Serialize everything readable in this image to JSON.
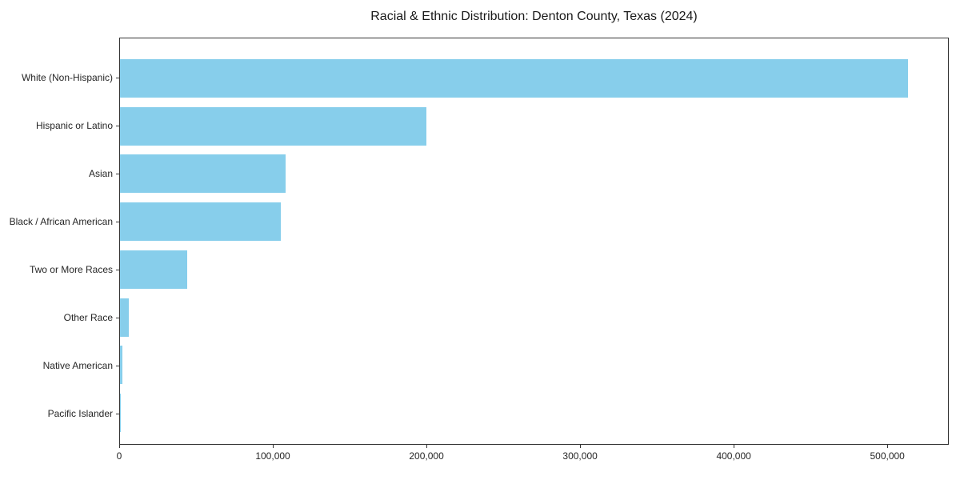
{
  "chart_data": {
    "type": "bar",
    "orientation": "horizontal",
    "title": "Racial & Ethnic Distribution: Denton County, Texas (2024)",
    "categories": [
      "White (Non-Hispanic)",
      "Hispanic or Latino",
      "Asian",
      "Black / African American",
      "Two or More Races",
      "Other Race",
      "Native American",
      "Pacific Islander"
    ],
    "values": [
      514000,
      200000,
      108000,
      105000,
      44000,
      6000,
      1500,
      600
    ],
    "xlabel": "",
    "ylabel": "",
    "xlim": [
      0,
      540000
    ],
    "xticks": [
      0,
      100000,
      200000,
      300000,
      400000,
      500000
    ],
    "xtick_labels": [
      "0",
      "100,000",
      "200,000",
      "300,000",
      "400,000",
      "500,000"
    ],
    "bar_color": "#87CEEB",
    "grid": false,
    "legend_position": "none"
  }
}
